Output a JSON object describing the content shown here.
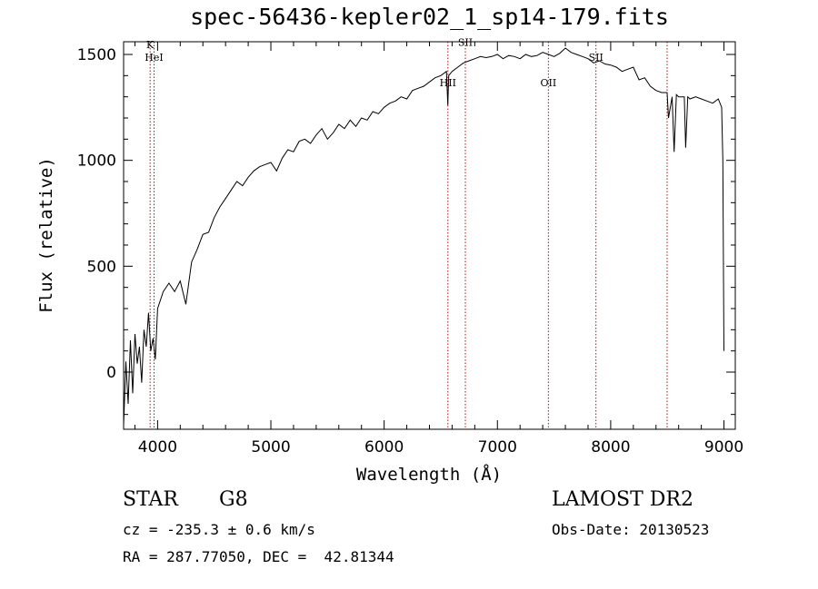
{
  "chart_data": {
    "type": "line",
    "title": "spec-56436-kepler02_1_sp14-179.fits",
    "xlabel": "Wavelength (Å)",
    "ylabel": "Flux (relative)",
    "xlim": [
      3700,
      9100
    ],
    "ylim": [
      -270,
      1560
    ],
    "xticks": [
      4000,
      5000,
      6000,
      7000,
      8000,
      9000
    ],
    "yticks": [
      0,
      500,
      1000,
      1500
    ],
    "grid": false,
    "series": [
      {
        "color": "#000000",
        "x": [
          3700,
          3720,
          3740,
          3760,
          3780,
          3800,
          3820,
          3840,
          3860,
          3880,
          3900,
          3920,
          3940,
          3960,
          3980,
          4000,
          4050,
          4100,
          4150,
          4200,
          4250,
          4300,
          4350,
          4400,
          4450,
          4500,
          4550,
          4600,
          4650,
          4700,
          4750,
          4800,
          4850,
          4900,
          4950,
          5000,
          5050,
          5100,
          5150,
          5200,
          5250,
          5300,
          5350,
          5400,
          5450,
          5500,
          5550,
          5600,
          5650,
          5700,
          5750,
          5800,
          5850,
          5900,
          5950,
          6000,
          6050,
          6100,
          6150,
          6200,
          6250,
          6300,
          6350,
          6400,
          6450,
          6500,
          6550,
          6562,
          6570,
          6600,
          6650,
          6700,
          6750,
          6800,
          6850,
          6900,
          6950,
          7000,
          7050,
          7100,
          7150,
          7200,
          7250,
          7300,
          7350,
          7400,
          7450,
          7500,
          7550,
          7600,
          7650,
          7700,
          7750,
          7800,
          7850,
          7900,
          7950,
          8000,
          8050,
          8100,
          8150,
          8200,
          8250,
          8300,
          8350,
          8400,
          8450,
          8498,
          8510,
          8542,
          8560,
          8580,
          8600,
          8650,
          8662,
          8680,
          8700,
          8750,
          8800,
          8850,
          8900,
          8950,
          8980,
          8990,
          9000
        ],
        "y": [
          -250,
          50,
          -150,
          150,
          -100,
          180,
          40,
          120,
          -50,
          200,
          120,
          280,
          100,
          160,
          60,
          300,
          380,
          420,
          380,
          430,
          320,
          520,
          580,
          650,
          660,
          730,
          780,
          820,
          860,
          900,
          880,
          920,
          950,
          970,
          980,
          990,
          950,
          1010,
          1050,
          1040,
          1090,
          1100,
          1080,
          1120,
          1150,
          1100,
          1130,
          1170,
          1150,
          1190,
          1160,
          1200,
          1190,
          1230,
          1220,
          1250,
          1270,
          1280,
          1300,
          1290,
          1330,
          1340,
          1350,
          1370,
          1390,
          1400,
          1420,
          1260,
          1400,
          1420,
          1440,
          1460,
          1470,
          1480,
          1490,
          1485,
          1490,
          1500,
          1480,
          1495,
          1490,
          1480,
          1500,
          1490,
          1495,
          1510,
          1500,
          1490,
          1505,
          1530,
          1510,
          1500,
          1490,
          1480,
          1460,
          1470,
          1455,
          1450,
          1440,
          1420,
          1430,
          1440,
          1380,
          1390,
          1350,
          1330,
          1320,
          1320,
          1200,
          1300,
          1040,
          1310,
          1300,
          1300,
          1060,
          1300,
          1290,
          1300,
          1290,
          1280,
          1270,
          1290,
          1250,
          1000,
          100
        ]
      }
    ],
    "lines": [
      {
        "x": 3934,
        "label": "K",
        "label_y": 1530
      },
      {
        "x": 3969,
        "label": "HeI",
        "label_y": 1470
      },
      {
        "x": 6563,
        "label": "HII",
        "label_y": 1350
      },
      {
        "x": 6717,
        "label": "SII",
        "label_y": 1540
      },
      {
        "x": 7450,
        "label": "OII",
        "label_y": 1350
      },
      {
        "x": 7870,
        "label": "SII",
        "label_y": 1470
      },
      {
        "x": 8498,
        "label": "",
        "label_y": 0
      }
    ]
  },
  "footer": {
    "object_type": "STAR",
    "subclass": "G8",
    "survey": "LAMOST DR2",
    "velocity": "cz = -235.3 ± 0.6 km/s",
    "obs_date": "Obs-Date: 20130523",
    "coords": "RA = 287.77050, DEC =  42.81344"
  }
}
